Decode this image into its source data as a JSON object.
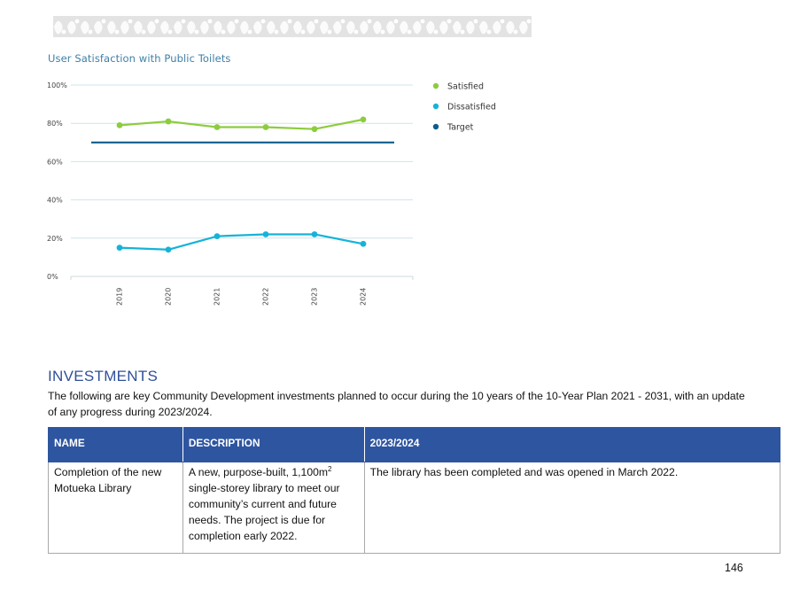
{
  "chart_title": "User Satisfaction with Public Toilets",
  "colors": {
    "satisfied": "#8dcc3f",
    "dissatisfied": "#16b3d8",
    "target": "#0f5c8c",
    "banner": "#e3e3e3",
    "table_header": "#2e55a0"
  },
  "chart_data": {
    "type": "line",
    "title": "User Satisfaction with Public Toilets",
    "x": [
      "2019",
      "2020",
      "2021",
      "2022",
      "2023",
      "2024"
    ],
    "ylim": [
      0,
      100
    ],
    "yticks": [
      "0%",
      "20%",
      "40%",
      "60%",
      "80%",
      "100%"
    ],
    "grid": true,
    "legend_position": "right",
    "series": [
      {
        "name": "Satisfied",
        "values": [
          79,
          81,
          78,
          78,
          77,
          82
        ],
        "color": "#8dcc3f"
      },
      {
        "name": "Dissatisfied",
        "values": [
          15,
          14,
          21,
          22,
          22,
          17
        ],
        "color": "#16b3d8"
      },
      {
        "name": "Target",
        "values": [
          70,
          70,
          70,
          70,
          70,
          70
        ],
        "color": "#0f5c8c"
      }
    ]
  },
  "investments": {
    "heading": "INVESTMENTS",
    "intro": "The following are key Community Development investments planned to occur during the 10 years of the 10-Year Plan 2021 - 2031, with an update of any progress during 2023/2024.",
    "columns": [
      "NAME",
      "DESCRIPTION",
      "2023/2024"
    ],
    "rows": [
      {
        "name": "Completion of the new Motueka Library",
        "description_before": "A new, purpose-built, 1,100m",
        "description_sup": "2",
        "description_after": " single-storey library to meet our community’s current and future needs. The project is due for completion early 2022.",
        "progress": "The library has been completed and was opened in March 2022."
      }
    ]
  },
  "page_number": "146"
}
